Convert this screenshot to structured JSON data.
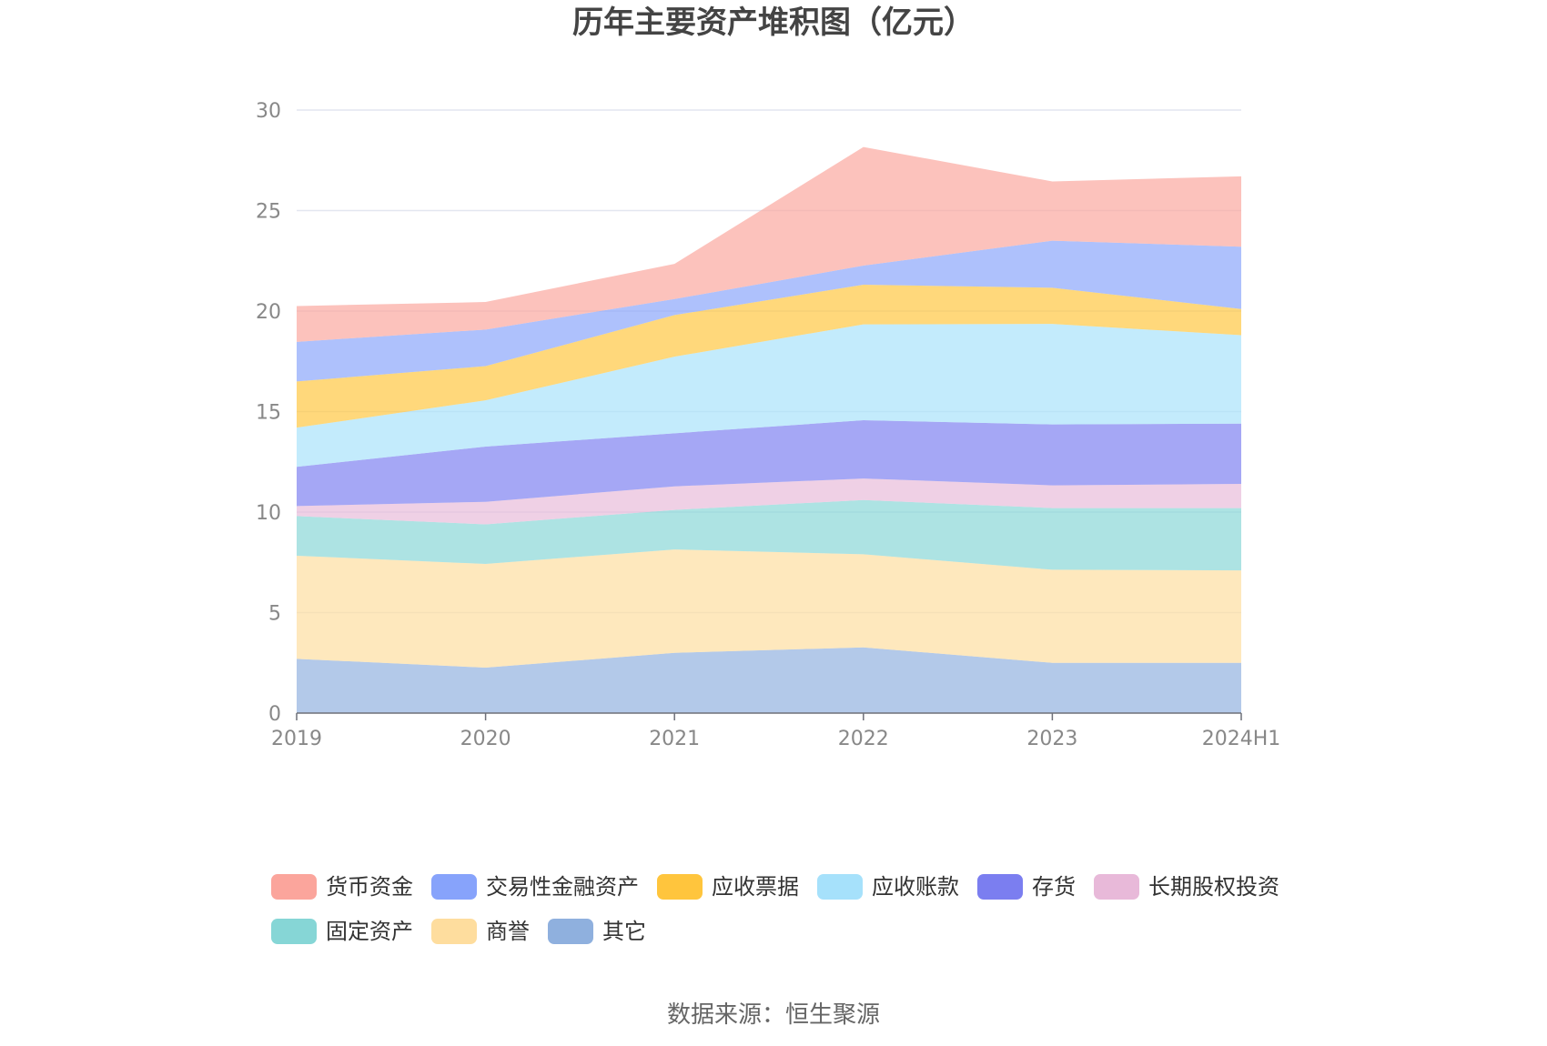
{
  "chart_data": {
    "type": "area",
    "stacked": true,
    "title": "历年主要资产堆积图（亿元）",
    "categories": [
      "2019",
      "2020",
      "2021",
      "2022",
      "2023",
      "2024H1"
    ],
    "ylim": [
      0,
      30
    ],
    "yticks": [
      0,
      5,
      10,
      15,
      20,
      25,
      30
    ],
    "grid": true,
    "legend_position": "bottom",
    "series": [
      {
        "name": "其它",
        "color": "#8fb0de",
        "values": [
          2.7,
          2.26,
          3.0,
          3.27,
          2.5,
          2.5
        ]
      },
      {
        "name": "商誉",
        "color": "#fedd9e",
        "values": [
          5.13,
          5.16,
          5.14,
          4.63,
          4.63,
          4.6
        ]
      },
      {
        "name": "固定资产",
        "color": "#86d6d6",
        "values": [
          1.97,
          1.97,
          1.97,
          2.7,
          3.07,
          3.1
        ]
      },
      {
        "name": "长期股权投资",
        "color": "#e8b9d9",
        "values": [
          0.5,
          1.12,
          1.17,
          1.07,
          1.13,
          1.2
        ]
      },
      {
        "name": "存货",
        "color": "#7b7ef0",
        "values": [
          1.95,
          2.75,
          2.64,
          2.9,
          3.03,
          3.0
        ]
      },
      {
        "name": "应收账款",
        "color": "#a6e1fb",
        "values": [
          1.95,
          2.3,
          3.81,
          4.77,
          5.0,
          4.4
        ]
      },
      {
        "name": "应收票据",
        "color": "#ffc53d",
        "values": [
          2.3,
          1.7,
          2.07,
          1.97,
          1.8,
          1.3
        ]
      },
      {
        "name": "交易性金融资产",
        "color": "#87a3fb",
        "values": [
          1.97,
          1.82,
          0.8,
          0.95,
          2.34,
          3.1
        ]
      },
      {
        "name": "货币资金",
        "color": "#fba59c",
        "values": [
          1.78,
          1.37,
          1.75,
          5.9,
          2.95,
          3.5
        ]
      }
    ]
  },
  "legend_order": [
    "货币资金",
    "交易性金融资产",
    "应收票据",
    "应收账款",
    "存货",
    "长期股权投资",
    "固定资产",
    "商誉",
    "其它"
  ],
  "source": "数据来源：恒生聚源"
}
